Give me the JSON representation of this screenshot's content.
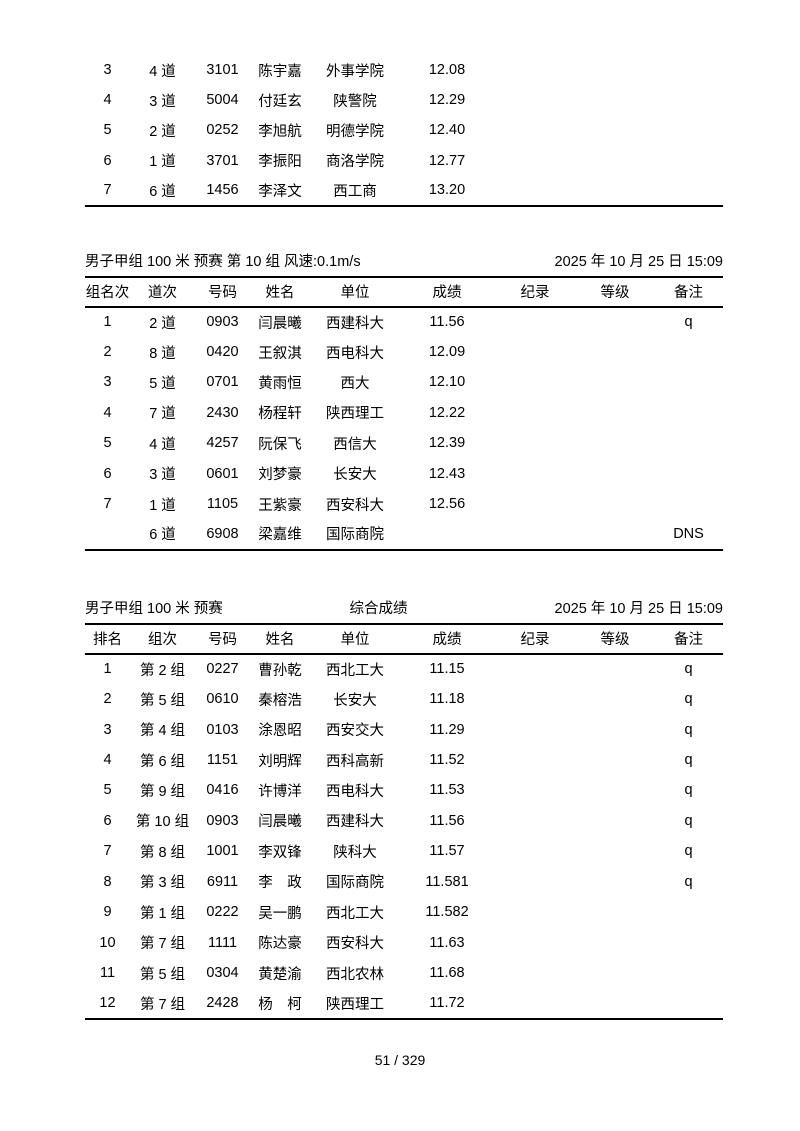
{
  "page": {
    "footer": "51 / 329"
  },
  "sections": [
    {
      "name": "previous-heat-continuation",
      "headers": null,
      "rows": [
        [
          "3",
          "4 道",
          "3101",
          "陈宇嘉",
          "外事学院",
          "12.08",
          "",
          "",
          ""
        ],
        [
          "4",
          "3 道",
          "5004",
          "付廷玄",
          "陕警院",
          "12.29",
          "",
          "",
          ""
        ],
        [
          "5",
          "2 道",
          "0252",
          "李旭航",
          "明德学院",
          "12.40",
          "",
          "",
          ""
        ],
        [
          "6",
          "1 道",
          "3701",
          "李振阳",
          "商洛学院",
          "12.77",
          "",
          "",
          ""
        ],
        [
          "7",
          "6 道",
          "1456",
          "李泽文",
          "西工商",
          "13.20",
          "",
          "",
          ""
        ]
      ]
    },
    {
      "name": "heat-10-results",
      "title_left": "男子甲组 100 米 预赛 第 10 组 风速:0.1m/s",
      "title_right": "2025 年 10 月 25 日 15:09",
      "headers": [
        "组名次",
        "道次",
        "号码",
        "姓名",
        "单位",
        "成绩",
        "纪录",
        "等级",
        "备注"
      ],
      "rows": [
        [
          "1",
          "2 道",
          "0903",
          "闫晨曦",
          "西建科大",
          "11.56",
          "",
          "",
          "q"
        ],
        [
          "2",
          "8 道",
          "0420",
          "王叙淇",
          "西电科大",
          "12.09",
          "",
          "",
          ""
        ],
        [
          "3",
          "5 道",
          "0701",
          "黄雨恒",
          "西大",
          "12.10",
          "",
          "",
          ""
        ],
        [
          "4",
          "7 道",
          "2430",
          "杨程轩",
          "陕西理工",
          "12.22",
          "",
          "",
          ""
        ],
        [
          "5",
          "4 道",
          "4257",
          "阮保飞",
          "西信大",
          "12.39",
          "",
          "",
          ""
        ],
        [
          "6",
          "3 道",
          "0601",
          "刘梦豪",
          "长安大",
          "12.43",
          "",
          "",
          ""
        ],
        [
          "7",
          "1 道",
          "1105",
          "王紫豪",
          "西安科大",
          "12.56",
          "",
          "",
          ""
        ],
        [
          "",
          "6 道",
          "6908",
          "梁嘉维",
          "国际商院",
          "",
          "",
          "",
          "DNS"
        ]
      ]
    },
    {
      "name": "combined-results",
      "title_left": "男子甲组 100 米 预赛",
      "title_center": "综合成绩",
      "title_right": "2025 年 10 月 25 日 15:09",
      "headers": [
        "排名",
        "组次",
        "号码",
        "姓名",
        "单位",
        "成绩",
        "纪录",
        "等级",
        "备注"
      ],
      "rows": [
        [
          "1",
          "第 2 组",
          "0227",
          "曹孙乾",
          "西北工大",
          "11.15",
          "",
          "",
          "q"
        ],
        [
          "2",
          "第 5 组",
          "0610",
          "秦榕浩",
          "长安大",
          "11.18",
          "",
          "",
          "q"
        ],
        [
          "3",
          "第 4 组",
          "0103",
          "涂恩昭",
          "西安交大",
          "11.29",
          "",
          "",
          "q"
        ],
        [
          "4",
          "第 6 组",
          "1151",
          "刘明辉",
          "西科高新",
          "11.52",
          "",
          "",
          "q"
        ],
        [
          "5",
          "第 9 组",
          "0416",
          "许博洋",
          "西电科大",
          "11.53",
          "",
          "",
          "q"
        ],
        [
          "6",
          "第 10 组",
          "0903",
          "闫晨曦",
          "西建科大",
          "11.56",
          "",
          "",
          "q"
        ],
        [
          "7",
          "第 8 组",
          "1001",
          "李双锋",
          "陕科大",
          "11.57",
          "",
          "",
          "q"
        ],
        [
          "8",
          "第 3 组",
          "6911",
          "李　政",
          "国际商院",
          "11.581",
          "",
          "",
          "q"
        ],
        [
          "9",
          "第 1 组",
          "0222",
          "吴一鹏",
          "西北工大",
          "11.582",
          "",
          "",
          ""
        ],
        [
          "10",
          "第 7 组",
          "1111",
          "陈达豪",
          "西安科大",
          "11.63",
          "",
          "",
          ""
        ],
        [
          "11",
          "第 5 组",
          "0304",
          "黄楚渝",
          "西北农林",
          "11.68",
          "",
          "",
          ""
        ],
        [
          "12",
          "第 7 组",
          "2428",
          "杨　柯",
          "陕西理工",
          "11.72",
          "",
          "",
          ""
        ]
      ]
    }
  ]
}
